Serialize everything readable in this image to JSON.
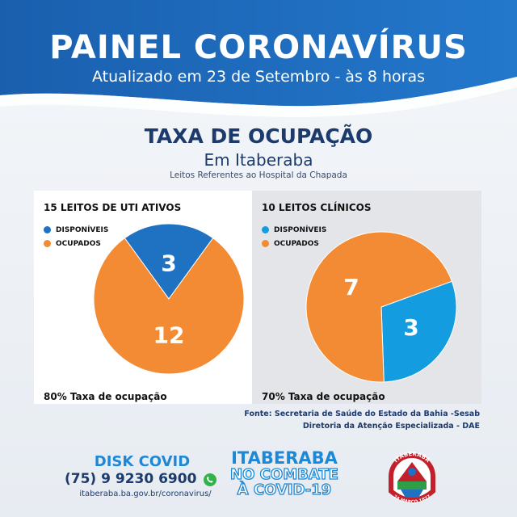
{
  "header": {
    "title": "PAINEL CORONAVÍRUS",
    "subtitle": "Atualizado em 23 de Setembro - às 8 horas"
  },
  "section": {
    "title": "TAXA DE OCUPAÇÃO",
    "city": "Em Itaberaba",
    "note": "Leitos Referentes ao Hospital da Chapada"
  },
  "colors": {
    "header_blue": "#1e6fc0",
    "disponiveis_left": "#1f72c2",
    "disponiveis_right": "#139ce0",
    "ocupados": "#f28b33"
  },
  "chart_data": [
    {
      "type": "pie",
      "title": "15 LEITOS DE UTI ATIVOS",
      "legend": [
        "DISPONÍVEIS",
        "OCUPADOS"
      ],
      "slices": [
        {
          "name": "DISPONÍVEIS",
          "value": 3,
          "label": "3"
        },
        {
          "name": "OCUPADOS",
          "value": 12,
          "label": "12"
        }
      ],
      "footer": "80% Taxa de ocupação",
      "legend_position": "top-left"
    },
    {
      "type": "pie",
      "title": "10 LEITOS CLÍNICOS",
      "legend": [
        "DISPONÍVEIS",
        "OCUPADOS"
      ],
      "slices": [
        {
          "name": "DISPONÍVEIS",
          "value": 3,
          "label": "3"
        },
        {
          "name": "OCUPADOS",
          "value": 7,
          "label": "7"
        }
      ],
      "footer": "70% Taxa de ocupação",
      "legend_position": "top-left"
    }
  ],
  "source": {
    "line1": "Fonte: Secretaria de Saúde do Estado da Bahia -Sesab",
    "line2": "Diretoria da Atenção Especializada - DAE"
  },
  "footer": {
    "disk_title": "DISK COVID",
    "phone": "(75) 9 9230 6900",
    "url": "itaberaba.ba.gov.br/coronavirus/",
    "city": "ITABERABA",
    "slogan_line1": "NO COMBATE",
    "slogan_line2": "À COVID-19",
    "emblem_top": "ITABERABA",
    "emblem_bottom": "24 MARÇO 1877",
    "whatsapp_icon": "whatsapp-icon"
  }
}
